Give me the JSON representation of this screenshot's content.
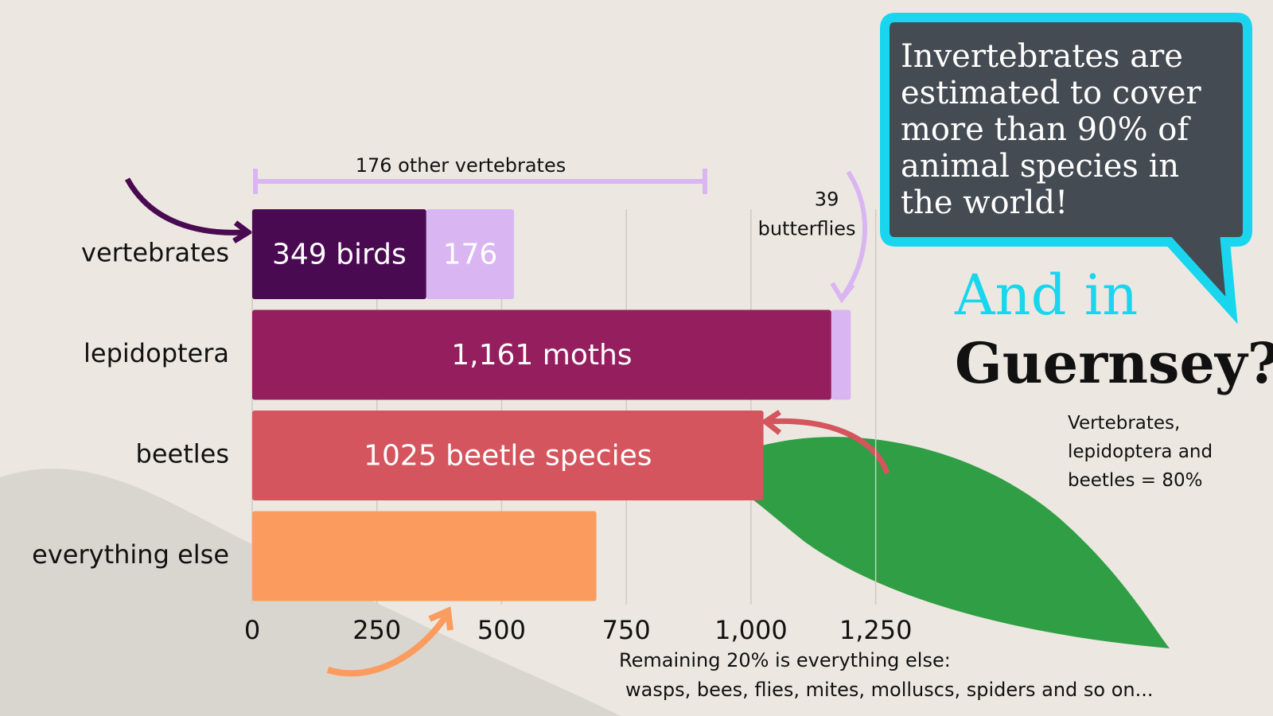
{
  "chart_data": {
    "type": "stacked-barh",
    "categories": [
      "vertebrates",
      "lepidoptera",
      "beetles",
      "everything else"
    ],
    "series": [
      {
        "colors": [
          "#4a0a52",
          "#951f5e",
          "#d4555e",
          "#fb9b5e"
        ],
        "values": [
          349,
          1161,
          1025,
          690
        ],
        "value_labels": [
          "349 birds",
          "1,161 moths",
          "1025 beetle species",
          null
        ]
      },
      {
        "color": "#d9b6f2",
        "values": [
          176,
          39,
          null,
          null
        ],
        "value_labels": [
          "176",
          "39",
          null,
          null
        ]
      }
    ],
    "xlim": [
      0,
      1300
    ],
    "xticks": [
      0,
      250,
      500,
      750,
      {
        "value": 1000,
        "label": "1,000"
      },
      {
        "value": 1250,
        "label": "1,250"
      }
    ],
    "grid": true,
    "annotations": {
      "other_vertebrates": "176 other vertebrates",
      "butterflies": "butterflies"
    }
  },
  "callout": "Invertebrates are estimated to cover more than 90% of animal species in the world!",
  "headline": {
    "line1": "And in",
    "line2": "Guernsey?"
  },
  "note_top": "Vertebrates, lepidoptera and beetles = 80%",
  "note_bottom": {
    "line1": "Remaining 20% is everything else:",
    "line2": "wasps, bees, flies, mites, molluscs, spiders and so on..."
  }
}
